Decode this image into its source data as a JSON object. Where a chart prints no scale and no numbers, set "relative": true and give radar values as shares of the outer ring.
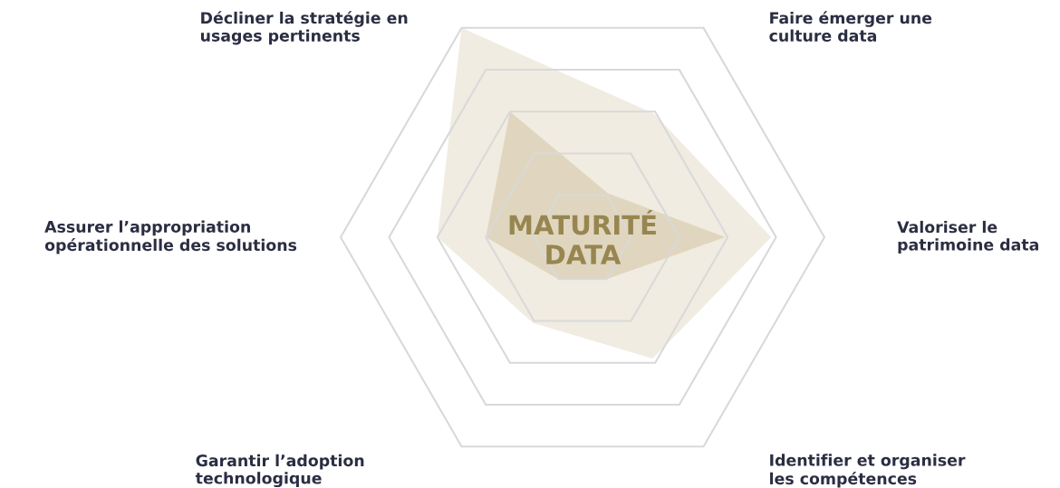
{
  "chart_data": {
    "type": "radar",
    "relative": true,
    "grid": true,
    "categories": [
      "Faire émerger une\nculture data",
      "Valoriser le\npatrimoine data",
      "Identifier et organiser\nles compétences",
      "Garantir l’adoption\ntechnologique",
      "Assurer l’appropriation\nopérationnelle des solutions",
      "Décliner la stratégie en\nusages pertinents"
    ],
    "series": [
      {
        "color": "#efe9dc",
        "values": [
          0.59,
          0.78,
          0.58,
          0.41,
          0.6,
          1.0
        ]
      },
      {
        "color": "#ddd2b8",
        "values": [
          0.21,
          0.59,
          0.2,
          0.2,
          0.4,
          0.6
        ]
      }
    ],
    "annotations": [
      "MATURITÉ\nDATA"
    ]
  }
}
